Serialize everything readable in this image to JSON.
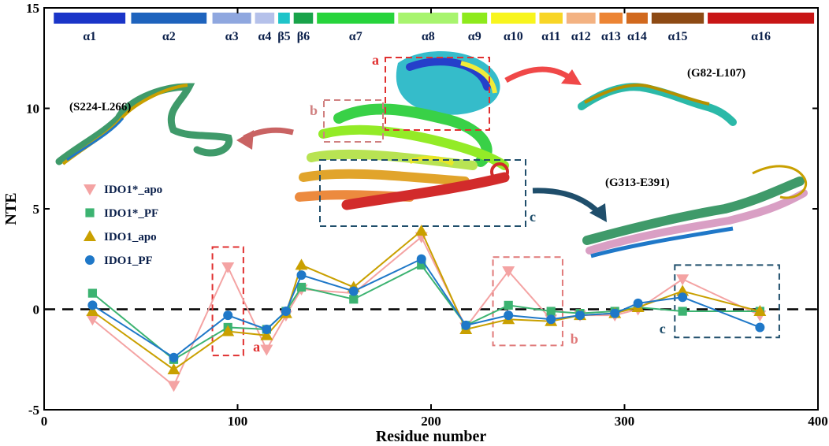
{
  "chart_data": {
    "type": "line",
    "xlabel": "Residue number",
    "ylabel": "NTE",
    "xlim": [
      0,
      400
    ],
    "ylim": [
      -5,
      15
    ],
    "x_ticks": [
      "0",
      "100",
      "200",
      "300",
      "400"
    ],
    "y_ticks": [
      "-5",
      "0",
      "5",
      "10",
      "15"
    ],
    "x": [
      25,
      67,
      95,
      115,
      125,
      133,
      160,
      195,
      218,
      240,
      262,
      277,
      295,
      307,
      330,
      370
    ],
    "series": [
      {
        "name": "IDO1*_apo",
        "color": "#f4a3a3",
        "marker": "triangle-down",
        "values": [
          -0.5,
          -3.8,
          2.1,
          -2.0,
          -0.3,
          1.0,
          0.8,
          3.6,
          -0.9,
          1.9,
          -0.5,
          -0.3,
          -0.3,
          0.0,
          1.5,
          -0.3
        ]
      },
      {
        "name": "IDO1*_PF",
        "color": "#3cb371",
        "marker": "square",
        "values": [
          0.8,
          -2.5,
          -0.9,
          -1.0,
          -0.1,
          1.1,
          0.5,
          2.2,
          -0.8,
          0.2,
          -0.1,
          -0.2,
          -0.1,
          0.1,
          -0.1,
          -0.1
        ]
      },
      {
        "name": "IDO1_apo",
        "color": "#c9a000",
        "marker": "triangle-up",
        "values": [
          -0.1,
          -3.0,
          -1.1,
          -1.3,
          -0.2,
          2.2,
          1.1,
          3.9,
          -1.0,
          -0.5,
          -0.6,
          -0.3,
          -0.2,
          0.1,
          0.9,
          -0.1
        ]
      },
      {
        "name": "IDO1_PF",
        "color": "#1f78c8",
        "marker": "circle",
        "values": [
          0.2,
          -2.4,
          -0.3,
          -1.0,
          -0.1,
          1.7,
          0.9,
          2.5,
          -0.8,
          -0.3,
          -0.5,
          -0.3,
          -0.2,
          0.3,
          0.6,
          -0.9
        ]
      }
    ],
    "reference_line": {
      "y": 0,
      "style": "dashed"
    },
    "legend_position": "left",
    "secondary_structure": [
      {
        "label": "α1",
        "start": 5,
        "end": 42,
        "color": "#1a35c8"
      },
      {
        "label": "α2",
        "start": 45,
        "end": 84,
        "color": "#1e63bd"
      },
      {
        "label": "α3",
        "start": 87,
        "end": 107,
        "color": "#8fa7df"
      },
      {
        "label": "α4",
        "start": 109,
        "end": 119,
        "color": "#b5c1ea"
      },
      {
        "label": "β5",
        "start": 121,
        "end": 127,
        "color": "#1fc4c9"
      },
      {
        "label": "β6",
        "start": 129,
        "end": 139,
        "color": "#19a34a"
      },
      {
        "label": "α7",
        "start": 141,
        "end": 181,
        "color": "#27d43c"
      },
      {
        "label": "α8",
        "start": 183,
        "end": 214,
        "color": "#a8f46e"
      },
      {
        "label": "α9",
        "start": 216,
        "end": 229,
        "color": "#8eea1c"
      },
      {
        "label": "α10",
        "start": 231,
        "end": 254,
        "color": "#f8f51e"
      },
      {
        "label": "α11",
        "start": 256,
        "end": 268,
        "color": "#f8d526"
      },
      {
        "label": "α12",
        "start": 270,
        "end": 285,
        "color": "#f3b282"
      },
      {
        "label": "α13",
        "start": 287,
        "end": 299,
        "color": "#ec8434"
      },
      {
        "label": "α14",
        "start": 301,
        "end": 312,
        "color": "#d1691e"
      },
      {
        "label": "α15",
        "start": 314,
        "end": 341,
        "color": "#8d4a14"
      },
      {
        "label": "α16",
        "start": 343,
        "end": 398,
        "color": "#c81616"
      }
    ],
    "annotations": [
      {
        "label": "a",
        "color": "#e03030",
        "note": "dashed box around residue ~95"
      },
      {
        "label": "b",
        "color": "#e07a7a",
        "note": "dashed box around residues ~230-268"
      },
      {
        "label": "c",
        "color": "#1f4e6b",
        "note": "dashed box around residues ~325-380"
      }
    ],
    "structure_labels": [
      "(S224-L266)",
      "(G82-L107)",
      "(G313-E391)"
    ],
    "structure_box_letters": [
      "a",
      "b",
      "c"
    ]
  }
}
